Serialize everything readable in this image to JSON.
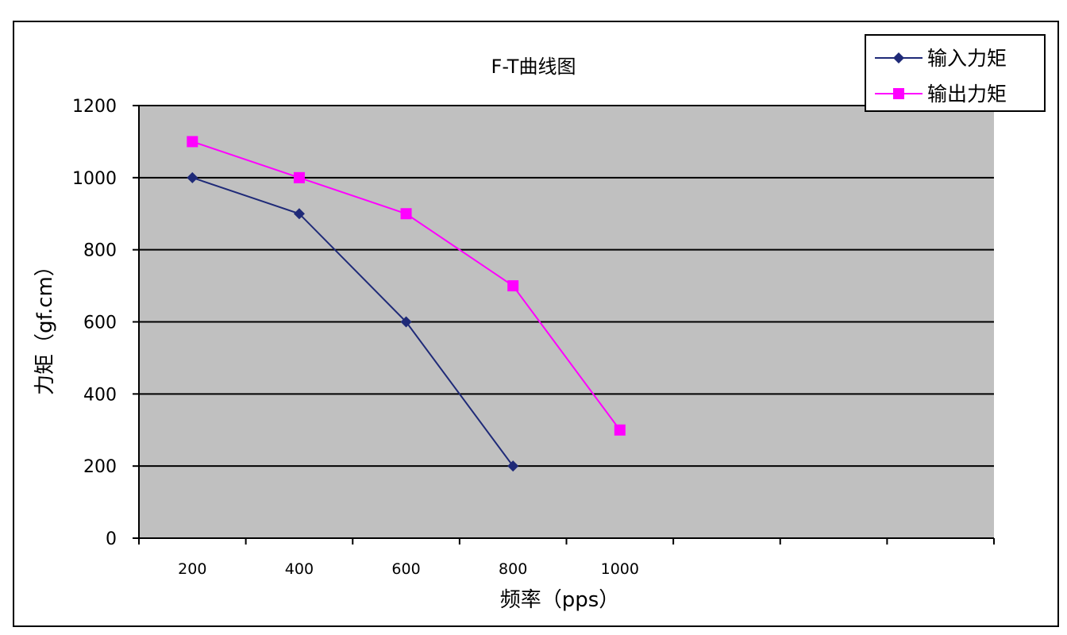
{
  "chart_data": {
    "type": "line",
    "title": "F-T曲线图",
    "xlabel": "频率（pps）",
    "ylabel": "力矩（gf.cm）",
    "categories": [
      "200",
      "400",
      "600",
      "800",
      "1000",
      "",
      "",
      ""
    ],
    "ylim": [
      0,
      1200
    ],
    "yticks": [
      0,
      200,
      400,
      600,
      800,
      1000,
      1200
    ],
    "grid": true,
    "legend_position": "top-right",
    "series": [
      {
        "name": "输入力矩",
        "color": "#1f2a78",
        "marker": "diamond",
        "values": [
          1000,
          900,
          600,
          200,
          null,
          null,
          null,
          null
        ]
      },
      {
        "name": "输出力矩",
        "color": "#ff00ff",
        "marker": "square",
        "values": [
          1100,
          1000,
          900,
          700,
          300,
          null,
          null,
          null
        ]
      }
    ],
    "plot_background": "#c0c0c0"
  }
}
